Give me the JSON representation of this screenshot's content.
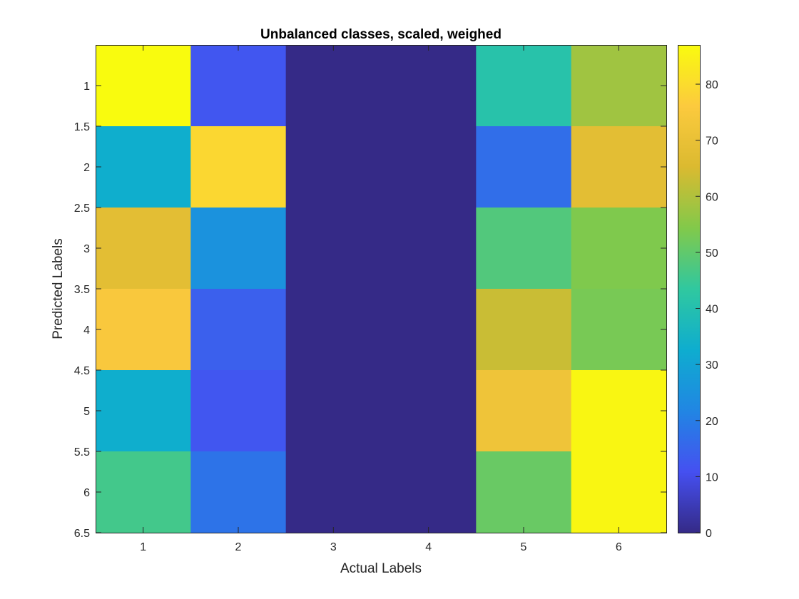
{
  "chart_data": {
    "type": "heatmap",
    "title": "Unbalanced classes, scaled, weighed",
    "xlabel": "Actual Labels",
    "ylabel": "Predicted Labels",
    "x_categories": [
      1,
      2,
      3,
      4,
      5,
      6
    ],
    "y_categories": [
      1,
      2,
      3,
      4,
      5,
      6
    ],
    "xlim": [
      0.5,
      6.5
    ],
    "ylim": [
      0.5,
      6.5
    ],
    "x_ticks": [
      "1",
      "2",
      "3",
      "4",
      "5",
      "6"
    ],
    "y_ticks": [
      "1",
      "1.5",
      "2",
      "2.5",
      "3",
      "3.5",
      "4",
      "4.5",
      "5",
      "5.5",
      "6",
      "6.5"
    ],
    "y_tick_values": [
      1,
      1.5,
      2,
      2.5,
      3,
      3.5,
      4,
      4.5,
      5,
      5.5,
      6,
      6.5
    ],
    "colorbar": {
      "range": [
        0,
        87
      ],
      "ticks": [
        "0",
        "10",
        "20",
        "30",
        "40",
        "50",
        "60",
        "70",
        "80"
      ],
      "tick_values": [
        0,
        10,
        20,
        30,
        40,
        50,
        60,
        70,
        80
      ],
      "colormap": "parula"
    },
    "values": [
      [
        87,
        12,
        0,
        0,
        41,
        58
      ],
      [
        33,
        79,
        0,
        0,
        17,
        68
      ],
      [
        68,
        25,
        0,
        0,
        48,
        54
      ],
      [
        75,
        14,
        0,
        0,
        63,
        53
      ],
      [
        33,
        12,
        0,
        0,
        72,
        86
      ],
      [
        46,
        18,
        0,
        0,
        51,
        86
      ]
    ],
    "grid": false
  }
}
